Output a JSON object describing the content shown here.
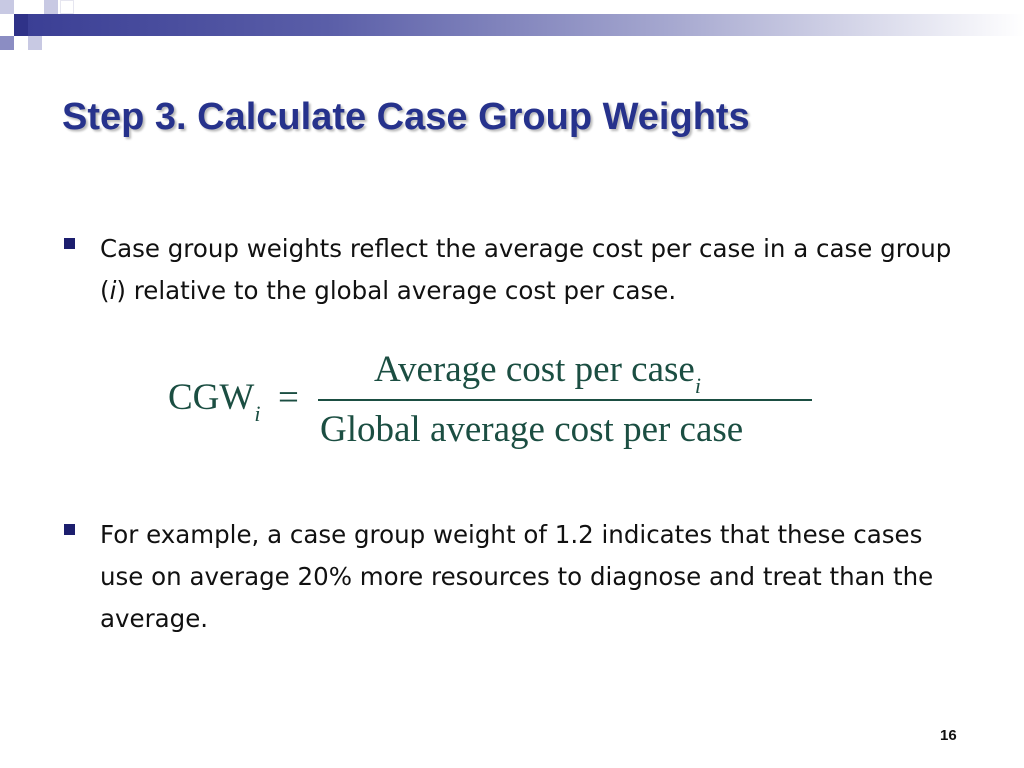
{
  "slide": {
    "title": "Step 3. Calculate Case Group Weights",
    "bullets": [
      {
        "before": "Case group weights reflect the average cost per case in a case group (",
        "italic": "i",
        "after": ") relative to the global average cost per case."
      },
      {
        "text": "For example, a case group weight of 1.2 indicates that these cases use on average 20% more resources to diagnose and treat than the average."
      }
    ],
    "formula": {
      "lhs": "CGW",
      "lhs_subscript": "i",
      "equals": "=",
      "numerator": "Average cost per case",
      "numerator_subscript": "i",
      "denominator": "Global average cost per case"
    },
    "page_number": "16"
  }
}
